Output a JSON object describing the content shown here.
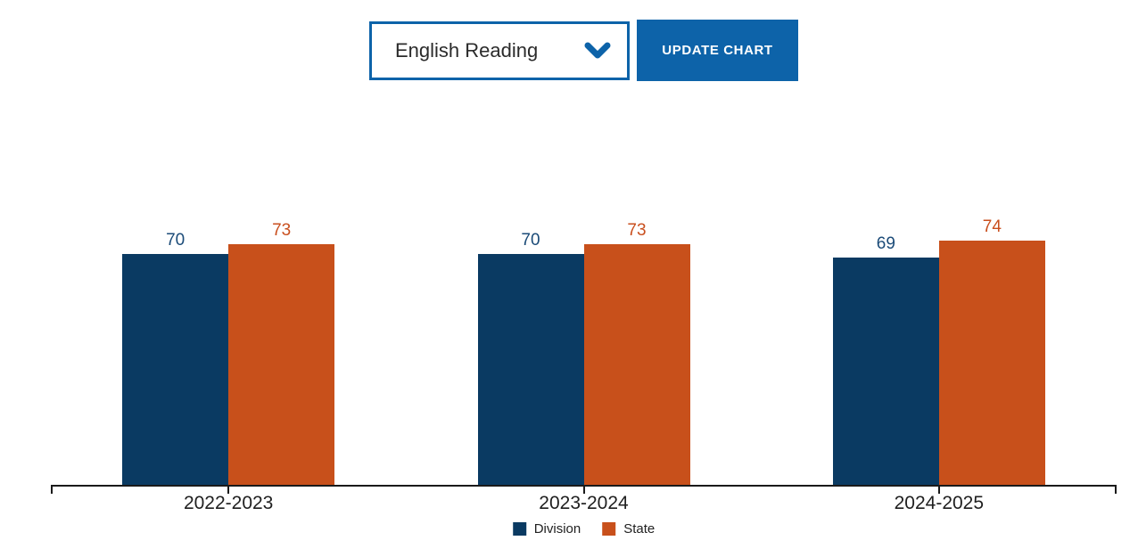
{
  "controls": {
    "subject_select": {
      "value": "English Reading"
    },
    "update_button_label": "UPDATE CHART"
  },
  "chart_data": {
    "type": "bar",
    "categories": [
      "2022-2023",
      "2023-2024",
      "2024-2025"
    ],
    "series": [
      {
        "name": "Division",
        "values": [
          70,
          70,
          69
        ],
        "color": "#0A3A62",
        "label_color": "#1B4B78"
      },
      {
        "name": "State",
        "values": [
          73,
          73,
          74
        ],
        "color": "#C8501B",
        "label_color": "#C94F1E"
      }
    ],
    "title": "",
    "xlabel": "",
    "ylabel": "",
    "ylim": [
      0,
      100
    ],
    "grid": false,
    "data_labels": true,
    "legend_position": "bottom"
  },
  "colors": {
    "accent_blue": "#0D63A9",
    "axis": "#1A1A1A",
    "text": "#212121"
  },
  "icons": {
    "chevron_down": "chevron-down"
  }
}
